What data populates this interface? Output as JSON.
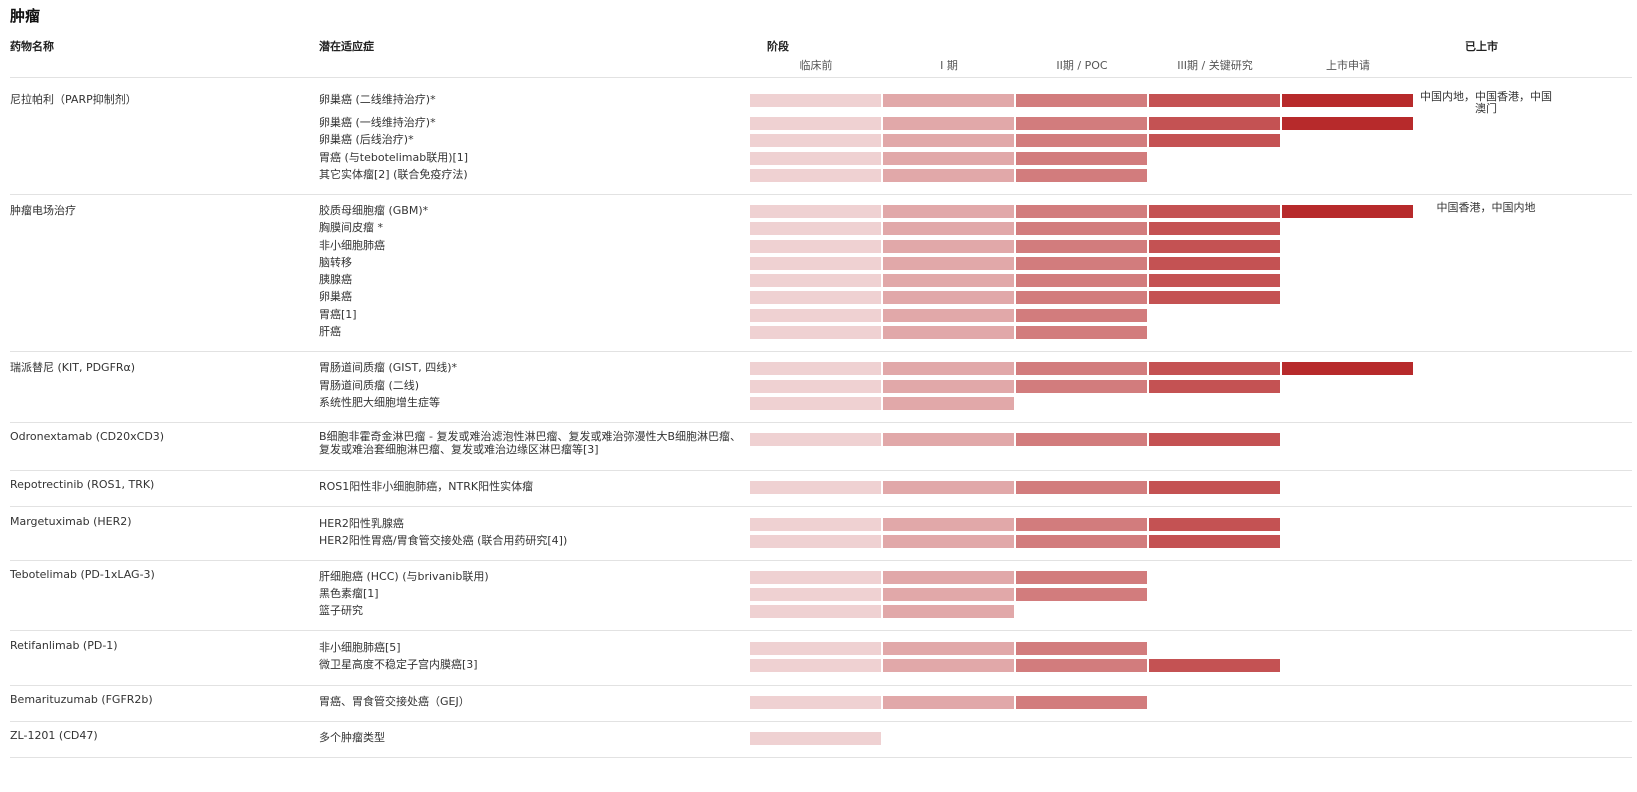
{
  "title": "肿瘤",
  "headers": {
    "drug": "药物名称",
    "indication": "潜在适应症",
    "phase": "阶段",
    "marketed": "已上市"
  },
  "chart_data": {
    "type": "table",
    "stages": [
      "临床前",
      "I 期",
      "II期 / POC",
      "III期 / 关键研究",
      "上市申请"
    ],
    "stage_colors": [
      "#efd1d2",
      "#e1a8a9",
      "#d27c7d",
      "#c45253",
      "#b72a2b"
    ],
    "groups": [
      {
        "drug": "尼拉帕利（PARP抑制剂）",
        "marketed": "中国内地，中国香港，中国澳门",
        "rows": [
          {
            "indication": "卵巢癌 (二线维持治疗)*",
            "stages_reached": 5
          },
          {
            "indication": "卵巢癌 (一线维持治疗)*",
            "stages_reached": 5
          },
          {
            "indication": "卵巢癌 (后线治疗)*",
            "stages_reached": 4
          },
          {
            "indication": "胃癌 (与tebotelimab联用)[1]",
            "stages_reached": 3
          },
          {
            "indication": "其它实体瘤[2] (联合免疫疗法)",
            "stages_reached": 3
          }
        ]
      },
      {
        "drug": "肿瘤电场治疗",
        "marketed": "中国香港，中国内地",
        "rows": [
          {
            "indication": "胶质母细胞瘤 (GBM)*",
            "stages_reached": 5
          },
          {
            "indication": "胸膜间皮瘤 *",
            "stages_reached": 4
          },
          {
            "indication": "非小细胞肺癌",
            "stages_reached": 4
          },
          {
            "indication": "脑转移",
            "stages_reached": 4
          },
          {
            "indication": "胰腺癌",
            "stages_reached": 4
          },
          {
            "indication": "卵巢癌",
            "stages_reached": 4
          },
          {
            "indication": "胃癌[1]",
            "stages_reached": 3
          },
          {
            "indication": "肝癌",
            "stages_reached": 3
          }
        ]
      },
      {
        "drug": "瑞派替尼 (KIT, PDGFRα)",
        "marketed": "",
        "rows": [
          {
            "indication": "胃肠道间质瘤 (GIST, 四线)*",
            "stages_reached": 5
          },
          {
            "indication": "胃肠道间质瘤 (二线)",
            "stages_reached": 4
          },
          {
            "indication": "系统性肥大细胞增生症等",
            "stages_reached": 2
          }
        ]
      },
      {
        "drug": "Odronextamab (CD20xCD3)",
        "marketed": "",
        "rows": [
          {
            "indication": "B细胞非霍奇金淋巴瘤 - 复发或难治滤泡性淋巴瘤、复发或难治弥漫性大B细胞淋巴瘤、复发或难治套细胞淋巴瘤、复发或难治边缘区淋巴瘤等[3]",
            "stages_reached": 4
          }
        ]
      },
      {
        "drug": "Repotrectinib (ROS1, TRK)",
        "marketed": "",
        "rows": [
          {
            "indication": "ROS1阳性非小细胞肺癌，NTRK阳性实体瘤",
            "stages_reached": 4
          }
        ]
      },
      {
        "drug": "Margetuximab (HER2)",
        "marketed": "",
        "rows": [
          {
            "indication": "HER2阳性乳腺癌",
            "stages_reached": 4
          },
          {
            "indication": "HER2阳性胃癌/胃食管交接处癌 (联合用药研究[4])",
            "stages_reached": 4
          }
        ]
      },
      {
        "drug": "Tebotelimab (PD-1xLAG-3)",
        "marketed": "",
        "rows": [
          {
            "indication": "肝细胞癌 (HCC) (与brivanib联用)",
            "stages_reached": 3
          },
          {
            "indication": "黑色素瘤[1]",
            "stages_reached": 3
          },
          {
            "indication": "篮子研究",
            "stages_reached": 2
          }
        ]
      },
      {
        "drug": "Retifanlimab (PD-1)",
        "marketed": "",
        "rows": [
          {
            "indication": "非小细胞肺癌[5]",
            "stages_reached": 3
          },
          {
            "indication": "微卫星高度不稳定子宫内膜癌[3]",
            "stages_reached": 4
          }
        ]
      },
      {
        "drug": "Bemarituzumab (FGFR2b)",
        "marketed": "",
        "rows": [
          {
            "indication": "胃癌、胃食管交接处癌（GEJ）",
            "stages_reached": 3
          }
        ]
      },
      {
        "drug": "ZL-1201 (CD47)",
        "marketed": "",
        "rows": [
          {
            "indication": "多个肿瘤类型",
            "stages_reached": 1
          }
        ]
      }
    ]
  }
}
